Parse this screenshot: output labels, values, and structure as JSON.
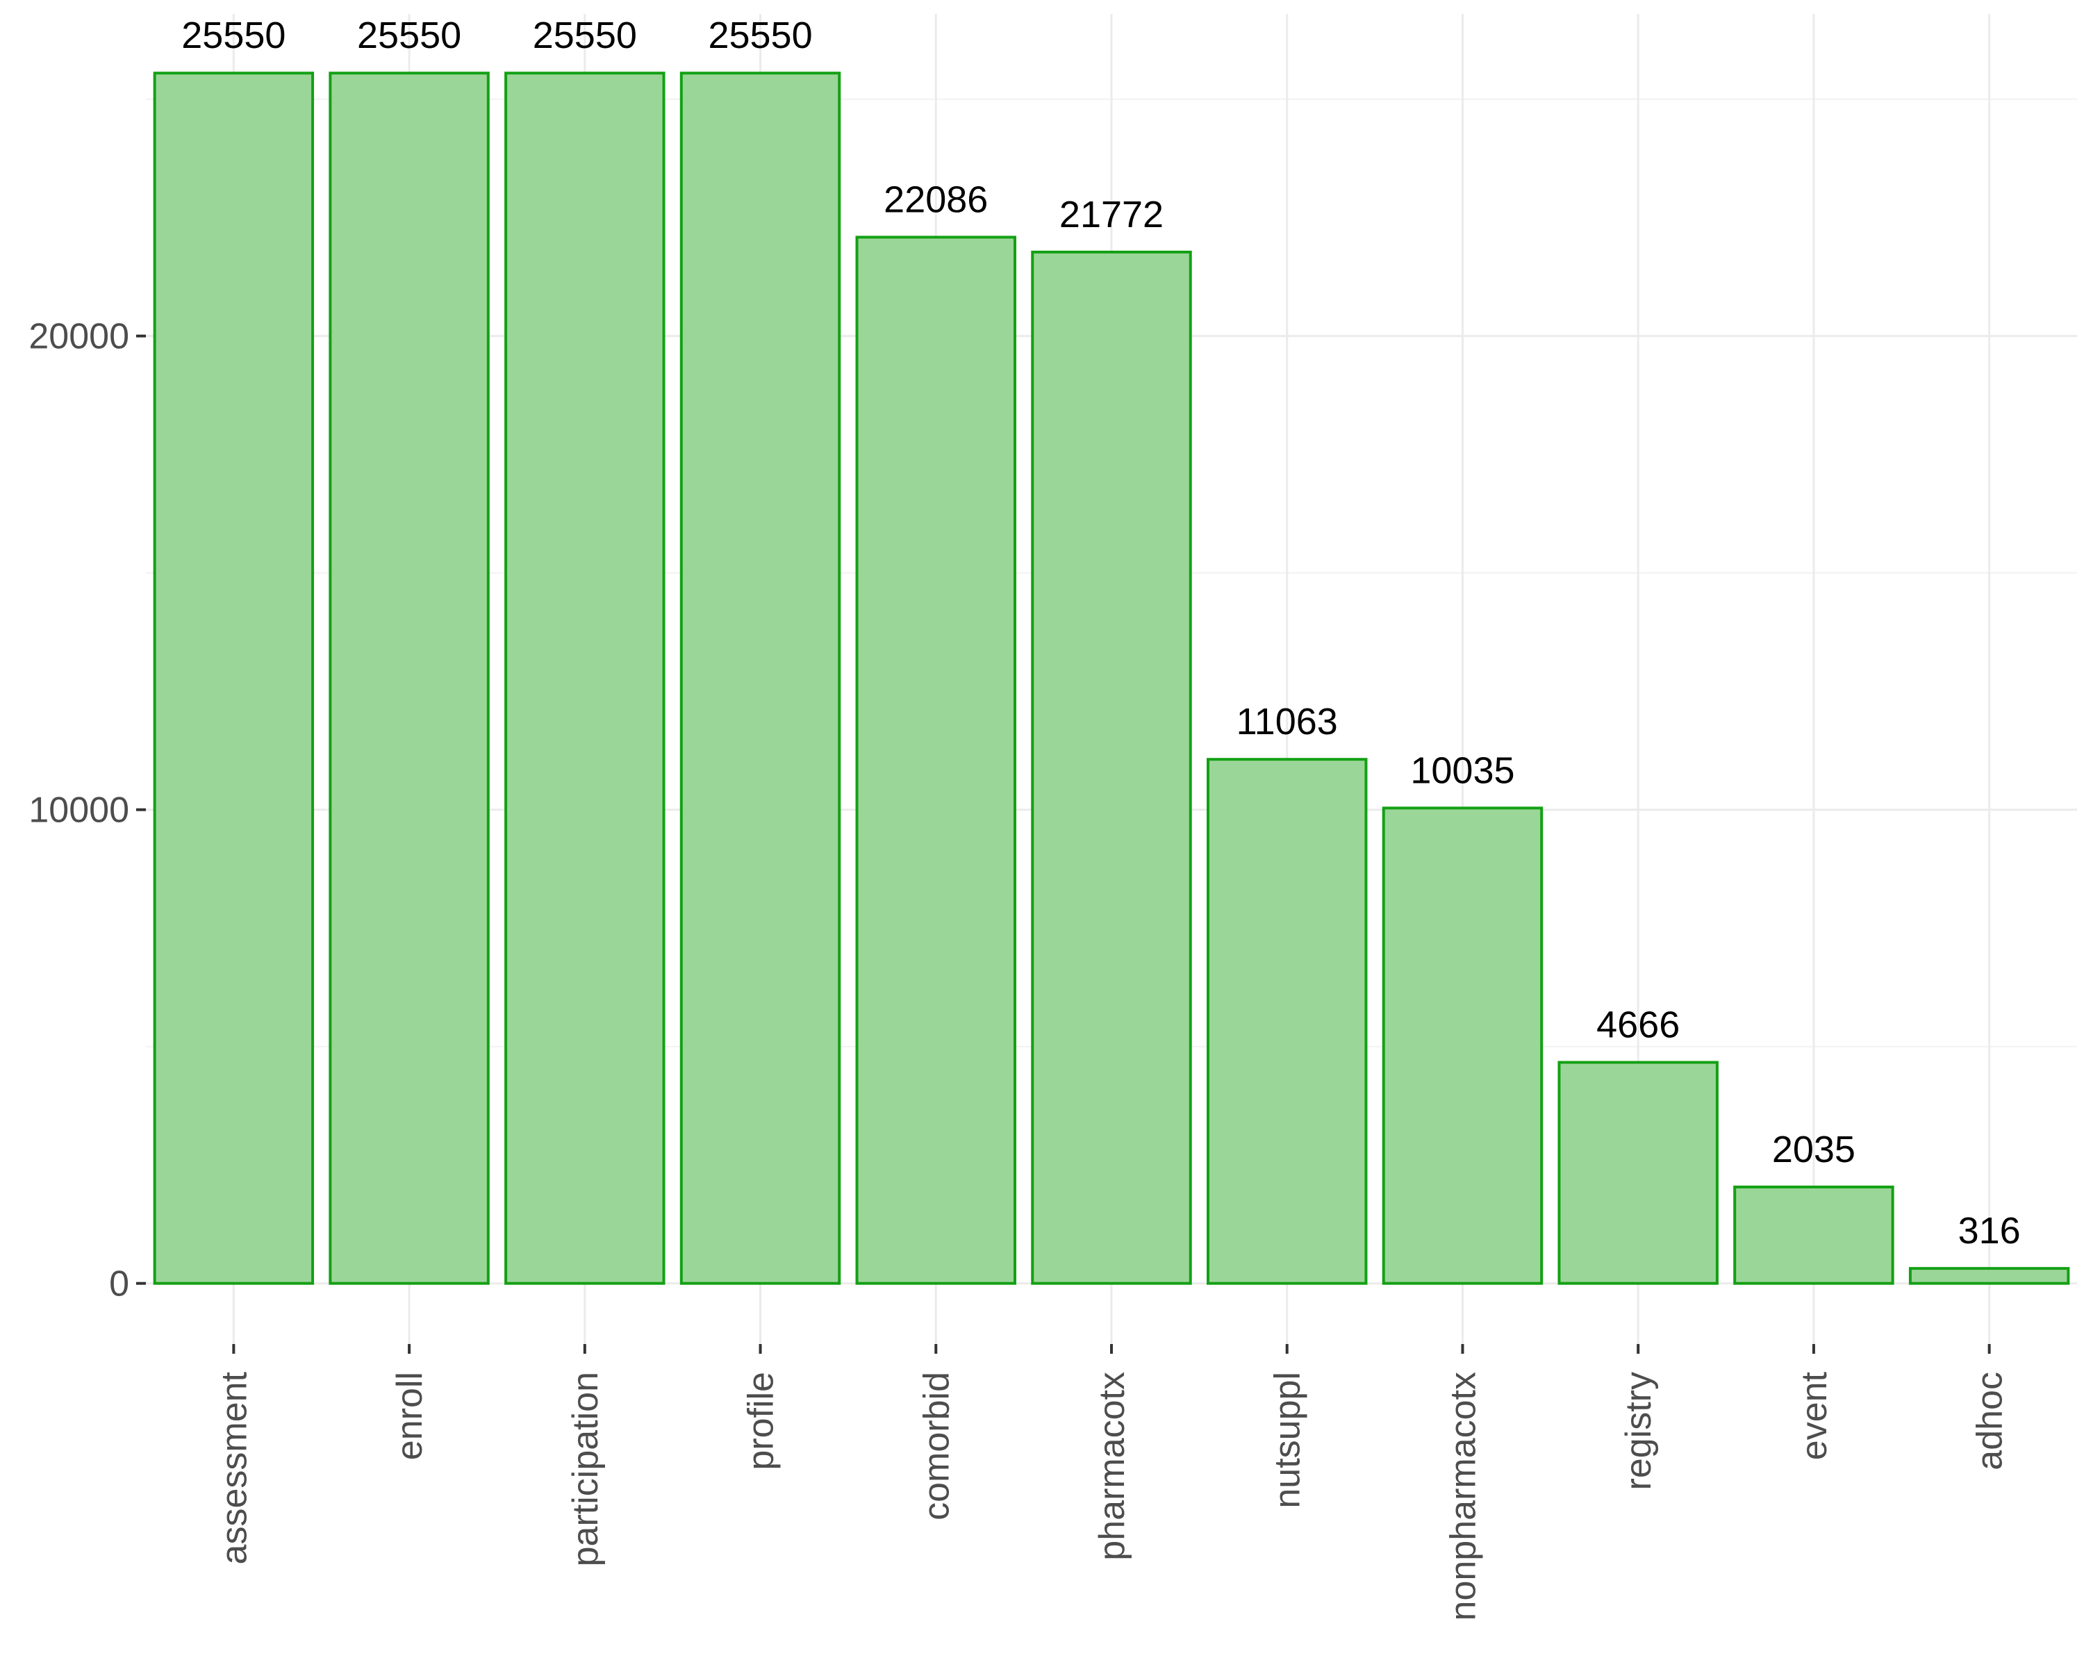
{
  "chart_data": {
    "type": "bar",
    "categories": [
      "assessment",
      "enroll",
      "participation",
      "profile",
      "comorbid",
      "pharmacotx",
      "nutsuppl",
      "nonpharmacotx",
      "registry",
      "event",
      "adhoc"
    ],
    "values": [
      25550,
      25550,
      25550,
      25550,
      22086,
      21772,
      11063,
      10035,
      4666,
      2035,
      316
    ],
    "data_labels": [
      "25550",
      "25550",
      "25550",
      "25550",
      "22086",
      "21772",
      "11063",
      "10035",
      "4666",
      "2035",
      "316"
    ],
    "title": "",
    "xlabel": "",
    "ylabel": "",
    "ylim": [
      -1280,
      26800
    ],
    "yticks": [
      0,
      10000,
      20000
    ],
    "ytick_labels": [
      "0",
      "10000",
      "20000"
    ],
    "grid": true,
    "legend": "none",
    "colors": {
      "bar_fill": "#9bd699",
      "bar_outline": "#14a014",
      "grid": "#ebebeb",
      "axis_text": "#4d4d4d",
      "label_text": "#000000"
    }
  }
}
